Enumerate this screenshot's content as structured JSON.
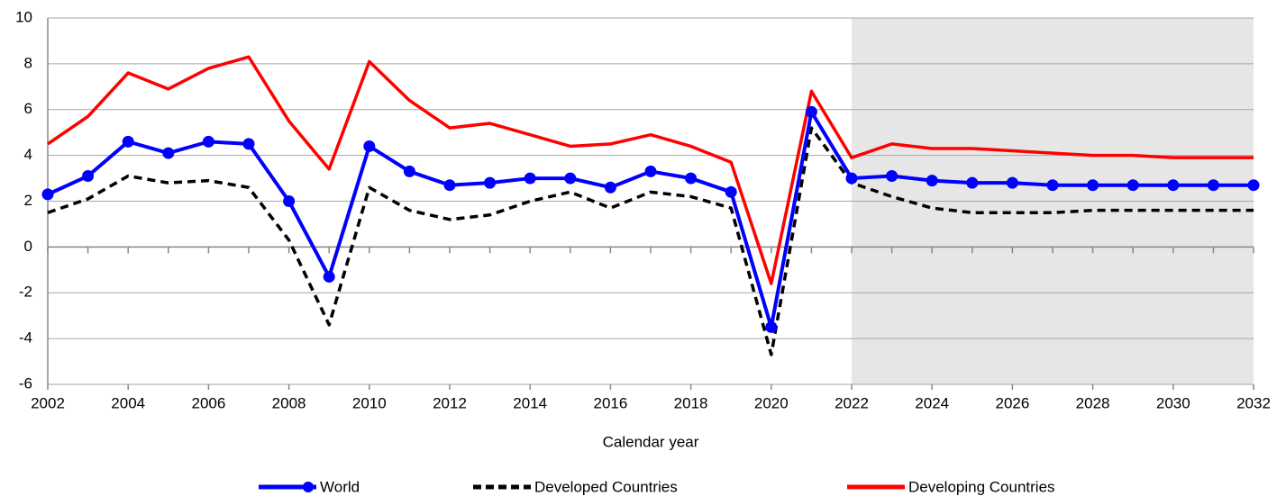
{
  "chart_data": {
    "type": "line",
    "x": [
      2002,
      2003,
      2004,
      2005,
      2006,
      2007,
      2008,
      2009,
      2010,
      2011,
      2012,
      2013,
      2014,
      2015,
      2016,
      2017,
      2018,
      2019,
      2020,
      2021,
      2022,
      2023,
      2024,
      2025,
      2026,
      2027,
      2028,
      2029,
      2030,
      2031,
      2032
    ],
    "series": [
      {
        "name": "World",
        "color": "#0000ff",
        "marker": true,
        "dash": false,
        "values": [
          2.3,
          3.1,
          4.6,
          4.1,
          4.6,
          4.5,
          2.0,
          -1.3,
          4.4,
          3.3,
          2.7,
          2.8,
          3.0,
          3.0,
          2.6,
          3.3,
          3.0,
          2.4,
          -3.5,
          5.9,
          3.0,
          3.1,
          2.9,
          2.8,
          2.8,
          2.7,
          2.7,
          2.7,
          2.7,
          2.7,
          2.7
        ]
      },
      {
        "name": "Developed Countries",
        "color": "#000000",
        "marker": false,
        "dash": true,
        "values": [
          1.5,
          2.1,
          3.1,
          2.8,
          2.9,
          2.6,
          0.3,
          -3.4,
          2.6,
          1.6,
          1.2,
          1.4,
          2.0,
          2.4,
          1.7,
          2.4,
          2.2,
          1.7,
          -4.7,
          5.2,
          2.8,
          2.2,
          1.7,
          1.5,
          1.5,
          1.5,
          1.6,
          1.6,
          1.6,
          1.6,
          1.6
        ]
      },
      {
        "name": "Developing Countries",
        "color": "#ff0000",
        "marker": false,
        "dash": false,
        "values": [
          4.5,
          5.7,
          7.6,
          6.9,
          7.8,
          8.3,
          5.5,
          3.4,
          8.1,
          6.4,
          5.2,
          5.4,
          4.9,
          4.4,
          4.5,
          4.9,
          4.4,
          3.7,
          -1.6,
          6.8,
          3.9,
          4.5,
          4.3,
          4.3,
          4.2,
          4.1,
          4.0,
          4.0,
          3.9,
          3.9,
          3.9
        ]
      }
    ],
    "xlabel": "Calendar year",
    "xlim": [
      2002,
      2032
    ],
    "xticks": [
      2002,
      2004,
      2006,
      2008,
      2010,
      2012,
      2014,
      2016,
      2018,
      2020,
      2022,
      2024,
      2026,
      2028,
      2030,
      2032
    ],
    "ylim": [
      -6,
      10
    ],
    "yticks": [
      -6,
      -4,
      -2,
      0,
      2,
      4,
      6,
      8,
      10
    ],
    "grid": true,
    "shade": [
      2022,
      2032
    ],
    "legend": "bottom"
  }
}
